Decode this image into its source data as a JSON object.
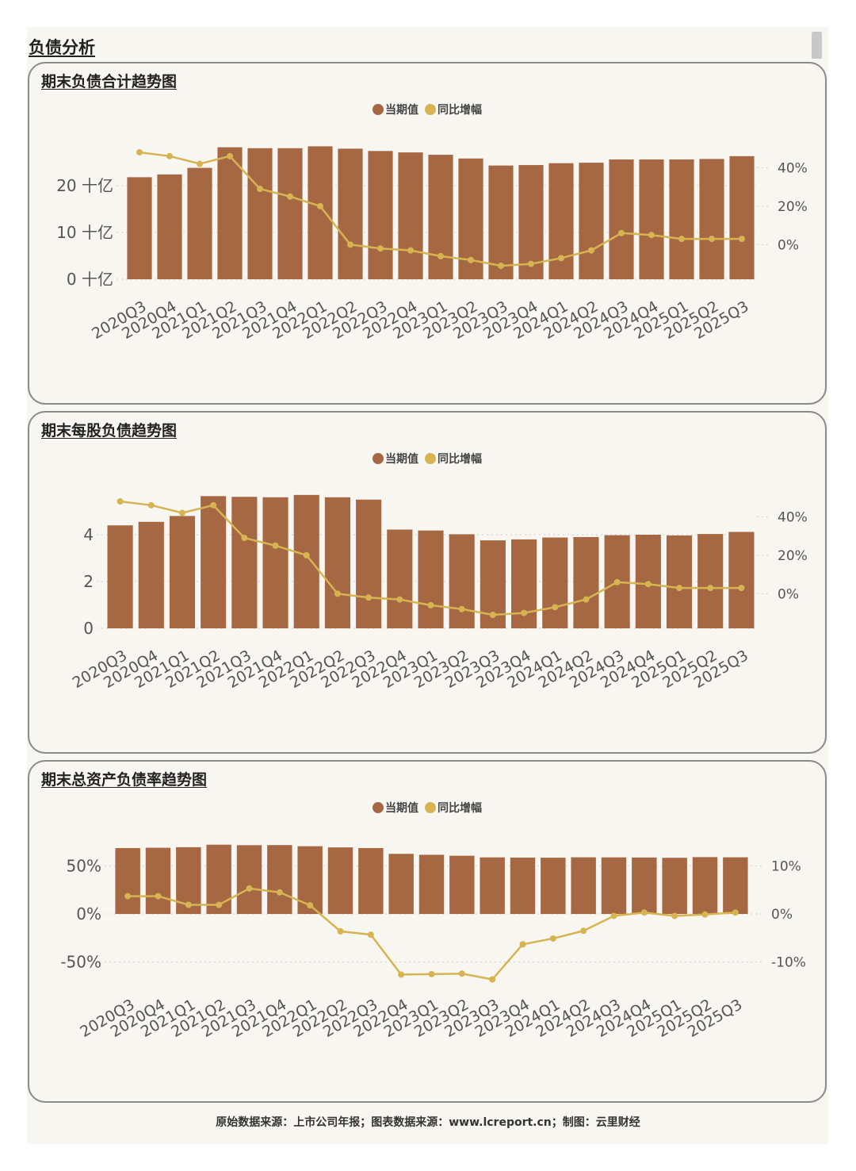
{
  "section_title": "负债分析",
  "legend": {
    "current": "当期值",
    "yoy": "同比增幅"
  },
  "colors": {
    "bar": "#a56843",
    "line": "#d6b452",
    "grid": "#cfcfcf",
    "axis_text": "#555555"
  },
  "footer": "原始数据来源：上市公司年报；图表数据来源：www.lcreport.cn；制图：云里财经",
  "chart_data": [
    {
      "type": "bar",
      "title": "期末负债合计趋势图",
      "categories": [
        "2020Q3",
        "2020Q4",
        "2021Q1",
        "2021Q2",
        "2021Q3",
        "2021Q4",
        "2022Q1",
        "2022Q2",
        "2022Q3",
        "2022Q4",
        "2023Q1",
        "2023Q2",
        "2023Q3",
        "2023Q4",
        "2024Q1",
        "2024Q2",
        "2024Q3",
        "2024Q4",
        "2025Q1",
        "2025Q2",
        "2025Q3"
      ],
      "series": [
        {
          "name": "当期值",
          "axis": "left",
          "values": [
            21.8,
            22.4,
            23.8,
            28.2,
            28.0,
            28.0,
            28.4,
            27.9,
            27.4,
            27.1,
            26.6,
            25.8,
            24.3,
            24.4,
            24.8,
            24.9,
            25.6,
            25.6,
            25.6,
            25.7,
            26.3
          ]
        },
        {
          "name": "同比增幅",
          "axis": "right",
          "type": "line",
          "values": [
            48,
            46,
            42,
            46,
            29,
            25,
            20,
            0,
            -2,
            -3,
            -6,
            -8,
            -11,
            -10,
            -7,
            -3,
            6,
            5,
            3,
            3,
            3
          ]
        }
      ],
      "left_axis": {
        "ticks": [
          0,
          10,
          20
        ],
        "tick_labels": [
          "0 十亿",
          "10 十亿",
          "20 十亿"
        ],
        "ylim": [
          0,
          30
        ]
      },
      "right_axis": {
        "ticks": [
          0,
          20,
          40
        ],
        "tick_labels": [
          "0%",
          "20%",
          "40%"
        ],
        "ylim": [
          -18,
          55
        ]
      }
    },
    {
      "type": "bar",
      "title": "期末每股负债趋势图",
      "categories": [
        "2020Q3",
        "2020Q4",
        "2021Q1",
        "2021Q2",
        "2021Q3",
        "2021Q4",
        "2022Q1",
        "2022Q2",
        "2022Q3",
        "2022Q4",
        "2023Q1",
        "2023Q2",
        "2023Q3",
        "2023Q4",
        "2024Q1",
        "2024Q2",
        "2024Q3",
        "2024Q4",
        "2025Q1",
        "2025Q2",
        "2025Q3"
      ],
      "series": [
        {
          "name": "当期值",
          "axis": "left",
          "values": [
            4.4,
            4.55,
            4.8,
            5.65,
            5.62,
            5.6,
            5.7,
            5.6,
            5.5,
            4.22,
            4.18,
            4.02,
            3.76,
            3.8,
            3.88,
            3.9,
            3.98,
            4.0,
            3.97,
            4.03,
            4.12
          ]
        },
        {
          "name": "同比增幅",
          "axis": "right",
          "type": "line",
          "values": [
            48,
            46,
            42,
            46,
            29,
            25,
            20,
            0,
            -2,
            -3,
            -6,
            -8,
            -11,
            -10,
            -7,
            -3,
            6,
            5,
            3,
            3,
            3
          ]
        }
      ],
      "left_axis": {
        "ticks": [
          0,
          2,
          4
        ],
        "tick_labels": [
          "0",
          "2",
          "4"
        ],
        "ylim": [
          0,
          6
        ]
      },
      "right_axis": {
        "ticks": [
          0,
          20,
          40
        ],
        "tick_labels": [
          "0%",
          "20%",
          "40%"
        ],
        "ylim": [
          -18,
          55
        ]
      }
    },
    {
      "type": "bar",
      "title": "期末总资产负债率趋势图",
      "categories": [
        "2020Q3",
        "2020Q4",
        "2021Q1",
        "2021Q2",
        "2021Q3",
        "2021Q4",
        "2022Q1",
        "2022Q2",
        "2022Q3",
        "2022Q4",
        "2023Q1",
        "2023Q2",
        "2023Q3",
        "2023Q4",
        "2024Q1",
        "2024Q2",
        "2024Q3",
        "2024Q4",
        "2025Q1",
        "2025Q2",
        "2025Q3"
      ],
      "series": [
        {
          "name": "当期值",
          "axis": "left",
          "values": [
            68.5,
            68.8,
            69.4,
            72.0,
            71.5,
            71.6,
            70.4,
            69.2,
            68.5,
            62.5,
            61.5,
            60.5,
            58.8,
            58.6,
            58.5,
            58.9,
            58.8,
            58.7,
            58.4,
            59.1,
            58.9
          ]
        },
        {
          "name": "同比增幅",
          "axis": "right",
          "type": "line",
          "values": [
            3.7,
            3.7,
            1.9,
            1.9,
            5.3,
            4.5,
            1.8,
            -3.6,
            -4.3,
            -12.6,
            -12.5,
            -12.4,
            -13.6,
            -6.3,
            -5.1,
            -3.5,
            -0.4,
            0.3,
            -0.4,
            -0.1,
            0.3
          ]
        }
      ],
      "left_axis": {
        "ticks": [
          -50,
          0,
          50
        ],
        "tick_labels": [
          "-50%",
          "0%",
          "50%"
        ],
        "ylim": [
          -75,
          80
        ]
      },
      "right_axis": {
        "ticks": [
          -10,
          0,
          10
        ],
        "tick_labels": [
          "-10%",
          "0%",
          "10%"
        ],
        "ylim": [
          -15,
          16
        ]
      }
    }
  ]
}
